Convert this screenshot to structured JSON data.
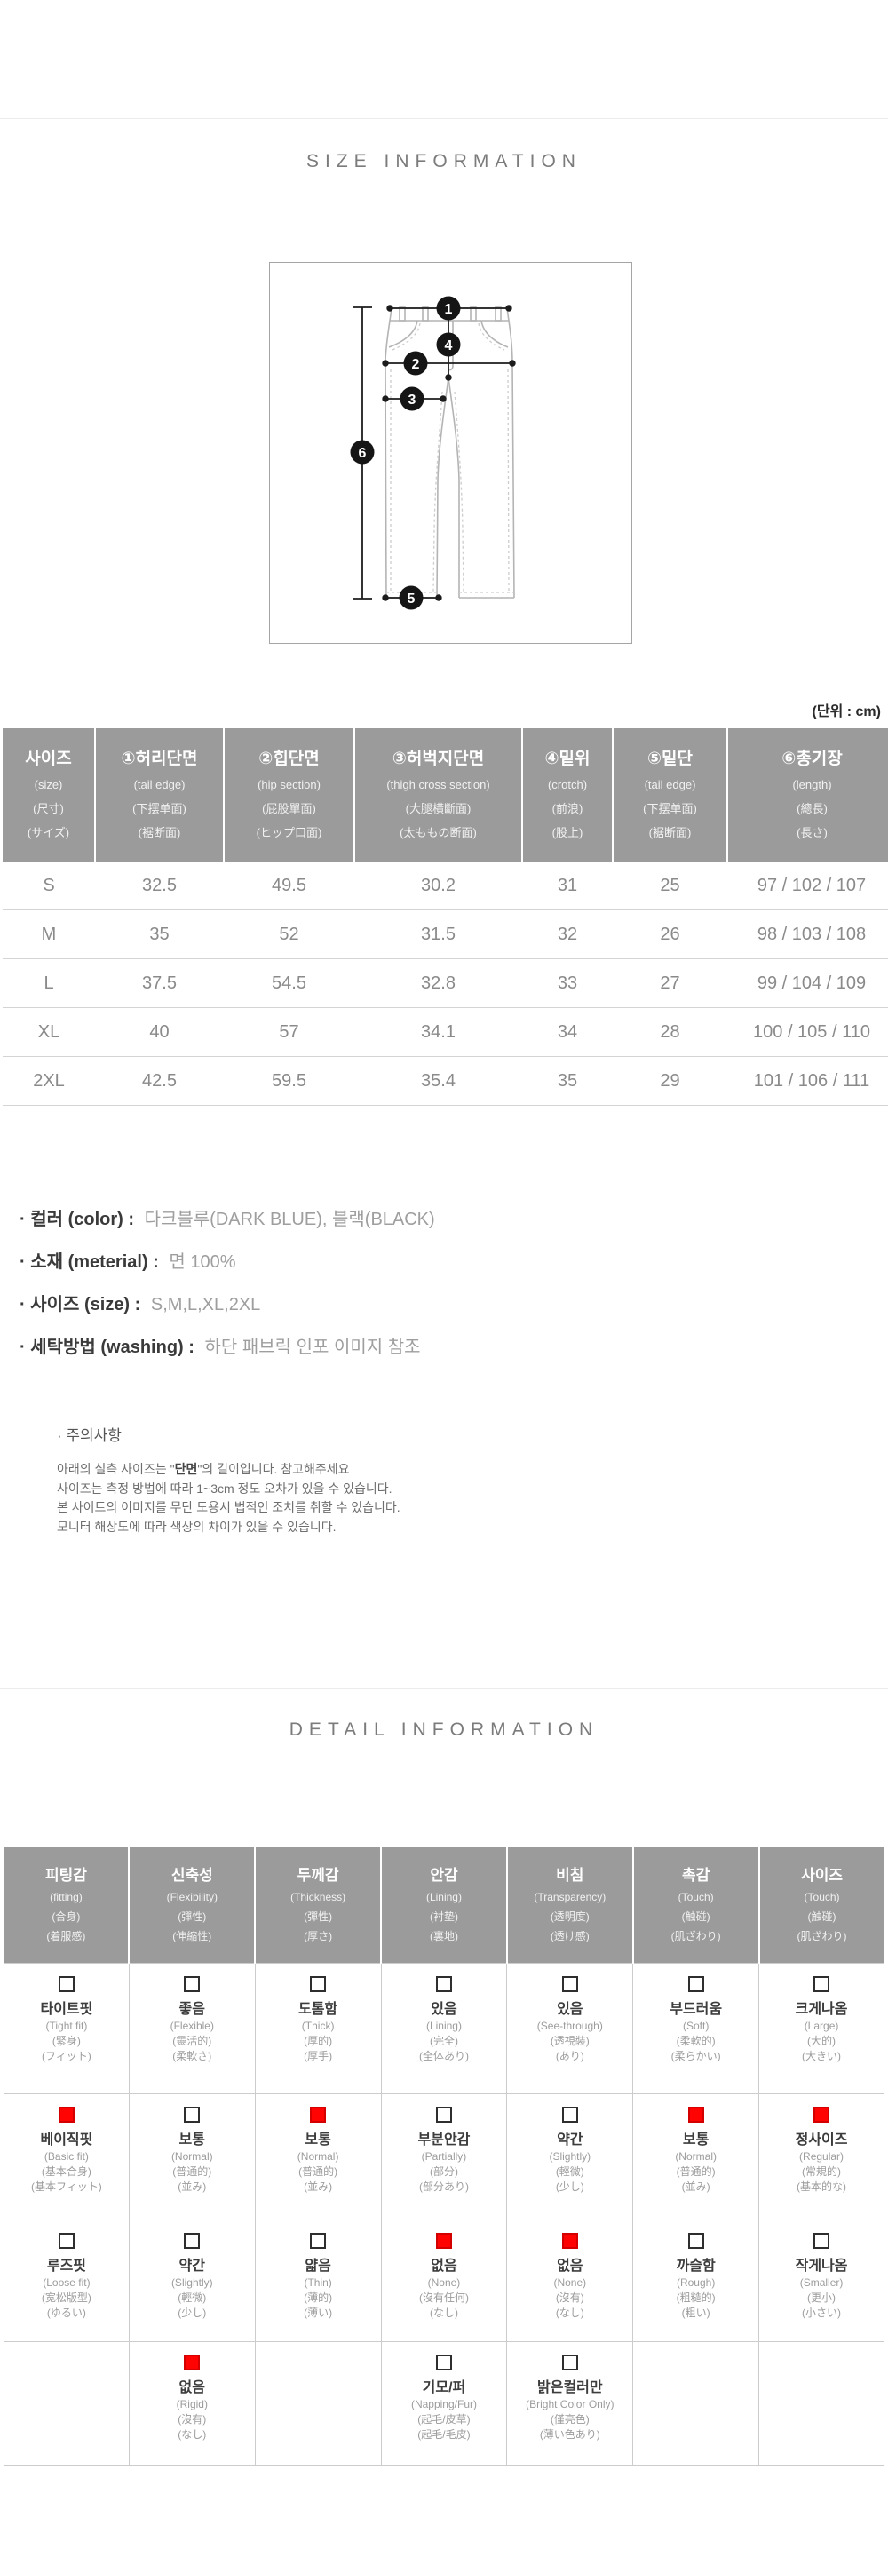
{
  "page": {
    "size_section_title": "SIZE INFORMATION",
    "detail_section_title": "DETAIL INFORMATION",
    "unit_label": "(단위 : cm)"
  },
  "colors": {
    "table_header_bg": "#9b9b9b",
    "checked_red": "#ff0202",
    "grid_line": "#cccccc"
  },
  "diagram": {
    "markers": [
      "1",
      "2",
      "3",
      "4",
      "5",
      "6"
    ]
  },
  "size_table": {
    "columns": [
      {
        "ko": "사이즈",
        "en": "(size)",
        "cn": "(尺寸)",
        "jp": "(サイズ)"
      },
      {
        "ko": "①허리단면",
        "en": "(tail edge)",
        "cn": "(下摆单面)",
        "jp": "(裾断面)"
      },
      {
        "ko": "②힙단면",
        "en": "(hip section)",
        "cn": "(屁股單面)",
        "jp": "(ヒップ口面)"
      },
      {
        "ko": "③허벅지단면",
        "en": "(thigh cross section)",
        "cn": "(大腿橫斷面)",
        "jp": "(太ももの断面)"
      },
      {
        "ko": "④밑위",
        "en": "(crotch)",
        "cn": "(前浪)",
        "jp": "(股上)"
      },
      {
        "ko": "⑤밑단",
        "en": "(tail edge)",
        "cn": "(下摆单面)",
        "jp": "(裾断面)"
      },
      {
        "ko": "⑥총기장",
        "en": "(length)",
        "cn": "(總長)",
        "jp": "(長さ)"
      }
    ],
    "rows": [
      [
        "S",
        "32.5",
        "49.5",
        "30.2",
        "31",
        "25",
        "97 / 102 / 107"
      ],
      [
        "M",
        "35",
        "52",
        "31.5",
        "32",
        "26",
        "98 / 103 / 108"
      ],
      [
        "L",
        "37.5",
        "54.5",
        "32.8",
        "33",
        "27",
        "99 / 104 / 109"
      ],
      [
        "XL",
        "40",
        "57",
        "34.1",
        "34",
        "28",
        "100 / 105 / 110"
      ],
      [
        "2XL",
        "42.5",
        "59.5",
        "35.4",
        "35",
        "29",
        "101 / 106 / 111"
      ]
    ]
  },
  "product_info": {
    "items": [
      {
        "label": "· 컬러 (color) :",
        "value": "다크블루(DARK BLUE), 블랙(BLACK)"
      },
      {
        "label": "· 소재 (meterial) :",
        "value": "면 100%"
      },
      {
        "label": "· 사이즈 (size) :",
        "value": "S,M,L,XL,2XL"
      },
      {
        "label": "· 세탁방법 (washing) :",
        "value": "하단 패브릭 인포 이미지 참조"
      }
    ]
  },
  "notice": {
    "title": "· 주의사항",
    "line1_pre": "아래의 실측 사이즈는 \"",
    "line1_bold": "단면",
    "line1_post": "\"의 길이입니다. 참고해주세요",
    "lines": [
      "사이즈는 측정 방법에 따라 1~3cm 정도 오차가 있을 수 있습니다.",
      "본 사이트의 이미지를 무단 도용시 법적인 조치를 취할 수 있습니다.",
      "모니터 해상도에 따라 색상의 차이가 있을 수 있습니다."
    ]
  },
  "detail_table": {
    "columns": [
      {
        "ko": "피팅감",
        "en": "(fitting)",
        "cn": "(合身)",
        "jp": "(着服感)"
      },
      {
        "ko": "신축성",
        "en": "(Flexibility)",
        "cn": "(彈性)",
        "jp": "(伸縮性)"
      },
      {
        "ko": "두께감",
        "en": "(Thickness)",
        "cn": "(彈性)",
        "jp": "(厚さ)"
      },
      {
        "ko": "안감",
        "en": "(Lining)",
        "cn": "(衬垫)",
        "jp": "(裏地)"
      },
      {
        "ko": "비침",
        "en": "(Transparency)",
        "cn": "(透明度)",
        "jp": "(透け感)"
      },
      {
        "ko": "촉감",
        "en": "(Touch)",
        "cn": "(触碰)",
        "jp": "(肌ざわり)"
      },
      {
        "ko": "사이즈",
        "en": "(Touch)",
        "cn": "(触碰)",
        "jp": "(肌ざわり)"
      }
    ],
    "rows": [
      [
        {
          "checked": false,
          "ko": "타이트핏",
          "en": "(Tight fit)",
          "cn": "(緊身)",
          "jp": "(フィット)"
        },
        {
          "checked": false,
          "ko": "좋음",
          "en": "(Flexible)",
          "cn": "(靈活的)",
          "jp": "(柔軟さ)"
        },
        {
          "checked": false,
          "ko": "도톰함",
          "en": "(Thick)",
          "cn": "(厚的)",
          "jp": "(厚手)"
        },
        {
          "checked": false,
          "ko": "있음",
          "en": "(Lining)",
          "cn": "(完全)",
          "jp": "(全体あり)"
        },
        {
          "checked": false,
          "ko": "있음",
          "en": "(See-through)",
          "cn": "(透視裝)",
          "jp": "(あり)"
        },
        {
          "checked": false,
          "ko": "부드러움",
          "en": "(Soft)",
          "cn": "(柔軟的)",
          "jp": "(柔らかい)"
        },
        {
          "checked": false,
          "ko": "크게나옴",
          "en": "(Large)",
          "cn": "(大的)",
          "jp": "(大きい)"
        }
      ],
      [
        {
          "checked": true,
          "ko": "베이직핏",
          "en": "(Basic fit)",
          "cn": "(基本合身)",
          "jp": "(基本フィット)"
        },
        {
          "checked": false,
          "ko": "보통",
          "en": "(Normal)",
          "cn": "(普通的)",
          "jp": "(並み)"
        },
        {
          "checked": true,
          "ko": "보통",
          "en": "(Normal)",
          "cn": "(普通的)",
          "jp": "(並み)"
        },
        {
          "checked": false,
          "ko": "부분안감",
          "en": "(Partially)",
          "cn": "(部分)",
          "jp": "(部分あり)"
        },
        {
          "checked": false,
          "ko": "약간",
          "en": "(Slightly)",
          "cn": "(輕微)",
          "jp": "(少し)"
        },
        {
          "checked": true,
          "ko": "보통",
          "en": "(Normal)",
          "cn": "(普通的)",
          "jp": "(並み)"
        },
        {
          "checked": true,
          "ko": "정사이즈",
          "en": "(Regular)",
          "cn": "(常規的)",
          "jp": "(基本的な)"
        }
      ],
      [
        {
          "checked": false,
          "ko": "루즈핏",
          "en": "(Loose fit)",
          "cn": "(宽松版型)",
          "jp": "(ゆるい)"
        },
        {
          "checked": false,
          "ko": "약간",
          "en": "(Slightly)",
          "cn": "(輕微)",
          "jp": "(少し)"
        },
        {
          "checked": false,
          "ko": "얇음",
          "en": "(Thin)",
          "cn": "(薄的)",
          "jp": "(薄い)"
        },
        {
          "checked": true,
          "ko": "없음",
          "en": "(None)",
          "cn": "(沒有任何)",
          "jp": "(なし)"
        },
        {
          "checked": true,
          "ko": "없음",
          "en": "(None)",
          "cn": "(沒有)",
          "jp": "(なし)"
        },
        {
          "checked": false,
          "ko": "까슬함",
          "en": "(Rough)",
          "cn": "(粗糙的)",
          "jp": "(粗い)"
        },
        {
          "checked": false,
          "ko": "작게나옴",
          "en": "(Smaller)",
          "cn": "(更小)",
          "jp": "(小さい)"
        }
      ],
      [
        null,
        {
          "checked": true,
          "ko": "없음",
          "en": "(Rigid)",
          "cn": "(沒有)",
          "jp": "(なし)"
        },
        null,
        {
          "checked": false,
          "ko": "기모/퍼",
          "en": "(Napping/Fur)",
          "cn": "(起毛/皮草)",
          "jp": "(起毛/毛皮)"
        },
        {
          "checked": false,
          "ko": "밝은컬러만",
          "en": "(Bright Color Only)",
          "cn": "(僅亮色)",
          "jp": "(薄い色あり)"
        },
        null,
        null
      ]
    ]
  }
}
